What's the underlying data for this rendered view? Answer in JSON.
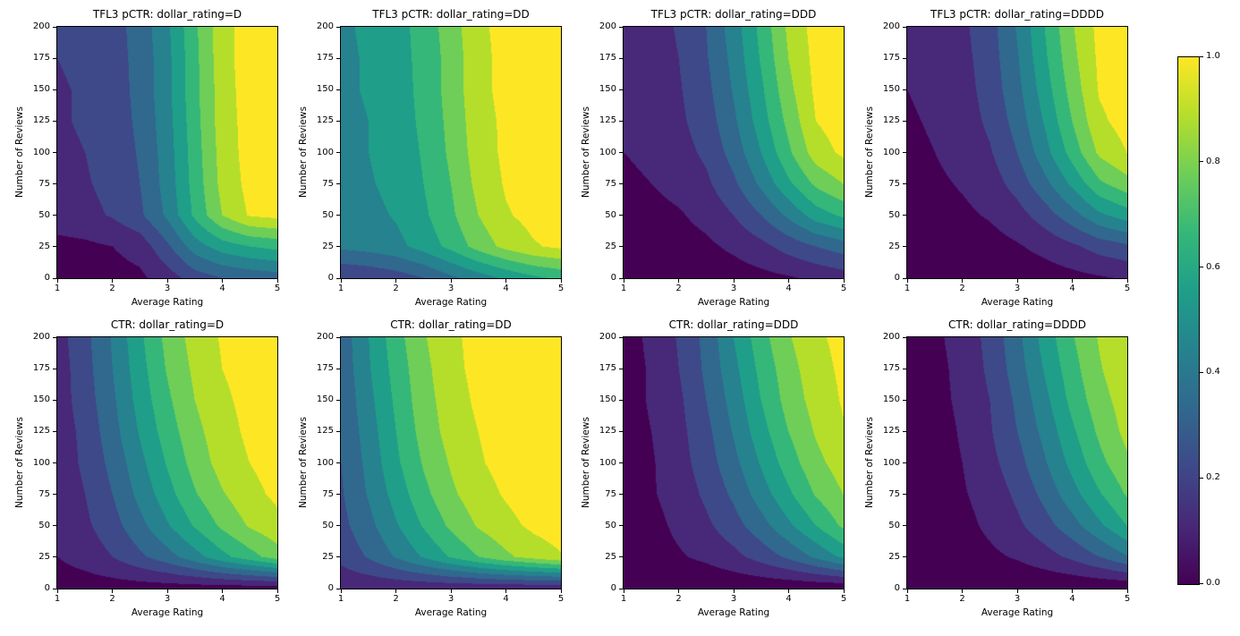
{
  "figure": {
    "background": "#ffffff",
    "description": "2x4 grid of filled contour plots of predicted and true click-through rate vs average rating and number of reviews, by dollar rating"
  },
  "axes": {
    "xlabel": "Average Rating",
    "ylabel": "Number of Reviews",
    "x_ticks": [
      "1",
      "2",
      "3",
      "4",
      "5"
    ],
    "y_ticks": [
      "0",
      "25",
      "50",
      "75",
      "100",
      "125",
      "150",
      "175",
      "200"
    ]
  },
  "colormap": {
    "name": "viridis",
    "band_colors": [
      "#440154",
      "#482878",
      "#3e4989",
      "#31688e",
      "#26828e",
      "#1f9e89",
      "#35b779",
      "#6ece58",
      "#b5de2b",
      "#fde725"
    ],
    "contour_levels": [
      0.0,
      0.1,
      0.2,
      0.3,
      0.4,
      0.5,
      0.6,
      0.7,
      0.8,
      0.9,
      1.0
    ]
  },
  "colorbar": {
    "tick_labels": [
      "0.0",
      "0.2",
      "0.4",
      "0.6",
      "0.8",
      "1.0"
    ],
    "min": 0.0,
    "max": 1.0
  },
  "chart_data": [
    {
      "type": "contour",
      "title": "TFL3 pCTR: dollar_rating=D",
      "xlabel": "Average Rating",
      "ylabel": "Number of Reviews",
      "xlim": [
        1,
        5
      ],
      "ylim": [
        0,
        200
      ],
      "x": [
        1,
        1.5,
        2,
        2.5,
        3,
        3.5,
        4,
        4.5,
        5
      ],
      "y": [
        0,
        25,
        50,
        75,
        100,
        125,
        150,
        175,
        200
      ],
      "z": [
        [
          0.05,
          0.05,
          0.06,
          0.08,
          0.15,
          0.25,
          0.3,
          0.33,
          0.35
        ],
        [
          0.07,
          0.08,
          0.1,
          0.14,
          0.28,
          0.45,
          0.55,
          0.6,
          0.63
        ],
        [
          0.15,
          0.17,
          0.21,
          0.28,
          0.42,
          0.62,
          0.8,
          0.91,
          0.93
        ],
        [
          0.17,
          0.19,
          0.23,
          0.3,
          0.44,
          0.64,
          0.83,
          0.93,
          0.95
        ],
        [
          0.18,
          0.2,
          0.24,
          0.31,
          0.45,
          0.65,
          0.84,
          0.94,
          0.96
        ],
        [
          0.19,
          0.21,
          0.25,
          0.32,
          0.46,
          0.66,
          0.85,
          0.94,
          0.96
        ],
        [
          0.19,
          0.21,
          0.25,
          0.33,
          0.47,
          0.67,
          0.85,
          0.95,
          0.96
        ],
        [
          0.2,
          0.22,
          0.26,
          0.33,
          0.47,
          0.67,
          0.86,
          0.95,
          0.97
        ],
        [
          0.2,
          0.22,
          0.26,
          0.34,
          0.48,
          0.68,
          0.86,
          0.95,
          0.97
        ]
      ]
    },
    {
      "type": "contour",
      "title": "TFL3 pCTR: dollar_rating=DD",
      "xlabel": "Average Rating",
      "ylabel": "Number of Reviews",
      "xlim": [
        1,
        5
      ],
      "ylim": [
        0,
        200
      ],
      "x": [
        1,
        1.5,
        2,
        2.5,
        3,
        3.5,
        4,
        4.5,
        5
      ],
      "y": [
        0,
        25,
        50,
        75,
        100,
        125,
        150,
        175,
        200
      ],
      "z": [
        [
          0.2,
          0.22,
          0.25,
          0.3,
          0.38,
          0.45,
          0.52,
          0.58,
          0.62
        ],
        [
          0.42,
          0.44,
          0.47,
          0.54,
          0.63,
          0.74,
          0.83,
          0.89,
          0.92
        ],
        [
          0.45,
          0.47,
          0.51,
          0.58,
          0.68,
          0.8,
          0.89,
          0.93,
          0.95
        ],
        [
          0.46,
          0.49,
          0.53,
          0.6,
          0.7,
          0.83,
          0.91,
          0.94,
          0.96
        ],
        [
          0.47,
          0.5,
          0.54,
          0.61,
          0.72,
          0.85,
          0.92,
          0.95,
          0.96
        ],
        [
          0.47,
          0.5,
          0.55,
          0.62,
          0.73,
          0.86,
          0.92,
          0.95,
          0.97
        ],
        [
          0.48,
          0.51,
          0.55,
          0.63,
          0.74,
          0.87,
          0.93,
          0.95,
          0.97
        ],
        [
          0.48,
          0.51,
          0.56,
          0.63,
          0.74,
          0.87,
          0.93,
          0.96,
          0.97
        ],
        [
          0.48,
          0.52,
          0.56,
          0.64,
          0.75,
          0.88,
          0.93,
          0.96,
          0.97
        ]
      ]
    },
    {
      "type": "contour",
      "title": "TFL3 pCTR: dollar_rating=DDD",
      "xlabel": "Average Rating",
      "ylabel": "Number of Reviews",
      "xlim": [
        1,
        5
      ],
      "ylim": [
        0,
        200
      ],
      "x": [
        1,
        1.5,
        2,
        2.5,
        3,
        3.5,
        4,
        4.5,
        5
      ],
      "y": [
        0,
        25,
        50,
        75,
        100,
        125,
        150,
        175,
        200
      ],
      "z": [
        [
          0.02,
          0.02,
          0.03,
          0.04,
          0.05,
          0.07,
          0.09,
          0.12,
          0.15
        ],
        [
          0.04,
          0.05,
          0.06,
          0.08,
          0.12,
          0.17,
          0.24,
          0.3,
          0.35
        ],
        [
          0.06,
          0.07,
          0.09,
          0.13,
          0.2,
          0.3,
          0.42,
          0.55,
          0.62
        ],
        [
          0.08,
          0.1,
          0.13,
          0.18,
          0.28,
          0.42,
          0.58,
          0.72,
          0.8
        ],
        [
          0.1,
          0.12,
          0.16,
          0.22,
          0.34,
          0.5,
          0.68,
          0.85,
          0.92
        ],
        [
          0.11,
          0.13,
          0.18,
          0.25,
          0.38,
          0.55,
          0.73,
          0.9,
          0.95
        ],
        [
          0.12,
          0.14,
          0.19,
          0.27,
          0.41,
          0.58,
          0.77,
          0.92,
          0.96
        ],
        [
          0.13,
          0.15,
          0.2,
          0.29,
          0.43,
          0.61,
          0.8,
          0.93,
          0.96
        ],
        [
          0.13,
          0.16,
          0.21,
          0.3,
          0.45,
          0.63,
          0.82,
          0.94,
          0.97
        ]
      ]
    },
    {
      "type": "contour",
      "title": "TFL3 pCTR: dollar_rating=DDDD",
      "xlabel": "Average Rating",
      "ylabel": "Number of Reviews",
      "xlim": [
        1,
        5
      ],
      "ylim": [
        0,
        200
      ],
      "x": [
        1,
        1.5,
        2,
        2.5,
        3,
        3.5,
        4,
        4.5,
        5
      ],
      "y": [
        0,
        25,
        50,
        75,
        100,
        125,
        150,
        175,
        200
      ],
      "z": [
        [
          0.01,
          0.01,
          0.02,
          0.03,
          0.04,
          0.05,
          0.07,
          0.09,
          0.11
        ],
        [
          0.03,
          0.04,
          0.05,
          0.06,
          0.09,
          0.13,
          0.18,
          0.24,
          0.28
        ],
        [
          0.05,
          0.06,
          0.08,
          0.11,
          0.16,
          0.25,
          0.36,
          0.48,
          0.55
        ],
        [
          0.07,
          0.08,
          0.11,
          0.15,
          0.24,
          0.37,
          0.52,
          0.68,
          0.76
        ],
        [
          0.08,
          0.1,
          0.14,
          0.19,
          0.3,
          0.46,
          0.64,
          0.82,
          0.9
        ],
        [
          0.09,
          0.11,
          0.15,
          0.22,
          0.34,
          0.51,
          0.7,
          0.88,
          0.94
        ],
        [
          0.1,
          0.12,
          0.16,
          0.24,
          0.37,
          0.55,
          0.74,
          0.91,
          0.95
        ],
        [
          0.11,
          0.13,
          0.17,
          0.25,
          0.39,
          0.58,
          0.77,
          0.92,
          0.96
        ],
        [
          0.11,
          0.13,
          0.18,
          0.26,
          0.41,
          0.6,
          0.79,
          0.93,
          0.96
        ]
      ]
    },
    {
      "type": "contour",
      "title": "CTR: dollar_rating=D",
      "xlabel": "Average Rating",
      "ylabel": "Number of Reviews",
      "xlim": [
        1,
        5
      ],
      "ylim": [
        0,
        200
      ],
      "x": [
        1,
        1.5,
        2,
        2.5,
        3,
        3.5,
        4,
        4.5,
        5
      ],
      "y": [
        0,
        25,
        50,
        75,
        100,
        125,
        150,
        175,
        200
      ],
      "z": [
        [
          0.05,
          0.05,
          0.05,
          0.05,
          0.05,
          0.05,
          0.05,
          0.05,
          0.05
        ],
        [
          0.1,
          0.14,
          0.2,
          0.28,
          0.36,
          0.46,
          0.57,
          0.66,
          0.75
        ],
        [
          0.12,
          0.18,
          0.26,
          0.37,
          0.49,
          0.61,
          0.72,
          0.81,
          0.87
        ],
        [
          0.13,
          0.2,
          0.3,
          0.43,
          0.56,
          0.69,
          0.79,
          0.87,
          0.92
        ],
        [
          0.14,
          0.22,
          0.33,
          0.47,
          0.61,
          0.74,
          0.84,
          0.9,
          0.94
        ],
        [
          0.14,
          0.23,
          0.36,
          0.51,
          0.65,
          0.77,
          0.86,
          0.92,
          0.96
        ],
        [
          0.15,
          0.25,
          0.38,
          0.54,
          0.68,
          0.8,
          0.88,
          0.93,
          0.96
        ],
        [
          0.15,
          0.26,
          0.4,
          0.56,
          0.71,
          0.82,
          0.9,
          0.94,
          0.97
        ],
        [
          0.16,
          0.27,
          0.41,
          0.58,
          0.73,
          0.84,
          0.91,
          0.95,
          0.97
        ]
      ]
    },
    {
      "type": "contour",
      "title": "CTR: dollar_rating=DD",
      "xlabel": "Average Rating",
      "ylabel": "Number of Reviews",
      "xlim": [
        1,
        5
      ],
      "ylim": [
        0,
        200
      ],
      "x": [
        1,
        1.5,
        2,
        2.5,
        3,
        3.5,
        4,
        4.5,
        5
      ],
      "y": [
        0,
        25,
        50,
        75,
        100,
        125,
        150,
        175,
        200
      ],
      "z": [
        [
          0.12,
          0.12,
          0.12,
          0.12,
          0.12,
          0.12,
          0.12,
          0.12,
          0.12
        ],
        [
          0.23,
          0.31,
          0.41,
          0.51,
          0.61,
          0.7,
          0.78,
          0.84,
          0.89
        ],
        [
          0.27,
          0.37,
          0.49,
          0.61,
          0.72,
          0.81,
          0.87,
          0.92,
          0.95
        ],
        [
          0.29,
          0.41,
          0.54,
          0.67,
          0.78,
          0.86,
          0.91,
          0.95,
          0.97
        ],
        [
          0.3,
          0.43,
          0.58,
          0.71,
          0.81,
          0.89,
          0.93,
          0.96,
          0.98
        ],
        [
          0.31,
          0.45,
          0.6,
          0.74,
          0.84,
          0.9,
          0.94,
          0.97,
          0.98
        ],
        [
          0.32,
          0.47,
          0.62,
          0.76,
          0.85,
          0.92,
          0.95,
          0.97,
          0.99
        ],
        [
          0.33,
          0.49,
          0.64,
          0.77,
          0.87,
          0.93,
          0.96,
          0.98,
          0.99
        ],
        [
          0.34,
          0.5,
          0.66,
          0.79,
          0.88,
          0.93,
          0.96,
          0.98,
          0.99
        ]
      ]
    },
    {
      "type": "contour",
      "title": "CTR: dollar_rating=DDD",
      "xlabel": "Average Rating",
      "ylabel": "Number of Reviews",
      "xlim": [
        1,
        5
      ],
      "ylim": [
        0,
        200
      ],
      "x": [
        1,
        1.5,
        2,
        2.5,
        3,
        3.5,
        4,
        4.5,
        5
      ],
      "y": [
        0,
        25,
        50,
        75,
        100,
        125,
        150,
        175,
        200
      ],
      "z": [
        [
          0.02,
          0.02,
          0.02,
          0.02,
          0.02,
          0.02,
          0.02,
          0.02,
          0.02
        ],
        [
          0.04,
          0.06,
          0.09,
          0.12,
          0.17,
          0.24,
          0.32,
          0.42,
          0.52
        ],
        [
          0.05,
          0.07,
          0.12,
          0.18,
          0.26,
          0.36,
          0.48,
          0.6,
          0.72
        ],
        [
          0.05,
          0.09,
          0.14,
          0.22,
          0.32,
          0.45,
          0.58,
          0.71,
          0.8
        ],
        [
          0.06,
          0.09,
          0.16,
          0.25,
          0.37,
          0.51,
          0.65,
          0.77,
          0.85
        ],
        [
          0.06,
          0.1,
          0.17,
          0.27,
          0.41,
          0.56,
          0.7,
          0.81,
          0.89
        ],
        [
          0.06,
          0.11,
          0.18,
          0.3,
          0.44,
          0.6,
          0.74,
          0.84,
          0.91
        ],
        [
          0.06,
          0.11,
          0.2,
          0.32,
          0.47,
          0.63,
          0.76,
          0.86,
          0.92
        ],
        [
          0.06,
          0.12,
          0.21,
          0.33,
          0.5,
          0.66,
          0.79,
          0.88,
          0.93
        ]
      ]
    },
    {
      "type": "contour",
      "title": "CTR: dollar_rating=DDDD",
      "xlabel": "Average Rating",
      "ylabel": "Number of Reviews",
      "xlim": [
        1,
        5
      ],
      "ylim": [
        0,
        200
      ],
      "x": [
        1,
        1.5,
        2,
        2.5,
        3,
        3.5,
        4,
        4.5,
        5
      ],
      "y": [
        0,
        25,
        50,
        75,
        100,
        125,
        150,
        175,
        200
      ],
      "z": [
        [
          0.01,
          0.01,
          0.01,
          0.01,
          0.01,
          0.01,
          0.01,
          0.01,
          0.01
        ],
        [
          0.02,
          0.04,
          0.05,
          0.08,
          0.11,
          0.16,
          0.22,
          0.3,
          0.39
        ],
        [
          0.03,
          0.05,
          0.07,
          0.12,
          0.18,
          0.26,
          0.36,
          0.48,
          0.6
        ],
        [
          0.03,
          0.05,
          0.09,
          0.14,
          0.22,
          0.33,
          0.46,
          0.59,
          0.71
        ],
        [
          0.03,
          0.06,
          0.1,
          0.17,
          0.26,
          0.39,
          0.53,
          0.67,
          0.78
        ],
        [
          0.04,
          0.06,
          0.11,
          0.19,
          0.3,
          0.43,
          0.58,
          0.72,
          0.83
        ],
        [
          0.04,
          0.07,
          0.12,
          0.2,
          0.32,
          0.47,
          0.63,
          0.76,
          0.85
        ],
        [
          0.04,
          0.07,
          0.13,
          0.22,
          0.35,
          0.51,
          0.66,
          0.79,
          0.88
        ],
        [
          0.04,
          0.08,
          0.14,
          0.23,
          0.37,
          0.54,
          0.69,
          0.81,
          0.89
        ]
      ]
    }
  ]
}
